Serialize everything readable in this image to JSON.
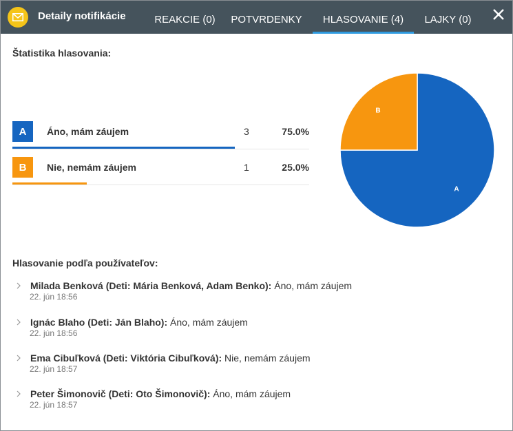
{
  "header": {
    "title": "Detaily notifikácie",
    "icon": "envelope-icon",
    "accent": "#f5c419",
    "bg": "#45535c"
  },
  "tabs": [
    {
      "label": "REAKCIE (0)",
      "active": false
    },
    {
      "label": "POTVRDENKY",
      "active": false
    },
    {
      "label": "HLASOVANIE (4)",
      "active": true
    },
    {
      "label": "LAJKY (0)",
      "active": false
    }
  ],
  "close_icon": "close-icon",
  "stats": {
    "title": "Štatistika hlasovania:",
    "options": [
      {
        "letter": "A",
        "label": "Áno, mám záujem",
        "count": "3",
        "percent": "75.0%",
        "fraction": 0.75,
        "color": "#1565c0"
      },
      {
        "letter": "B",
        "label": "Nie, nemám záujem",
        "count": "1",
        "percent": "25.0%",
        "fraction": 0.25,
        "color": "#f7960f"
      }
    ]
  },
  "chart_data": {
    "type": "pie",
    "categories": [
      "A",
      "B"
    ],
    "values": [
      3,
      1
    ],
    "colors": [
      "#1565c0",
      "#f7960f"
    ]
  },
  "users": {
    "title": "Hlasovanie podľa používateľov:",
    "items": [
      {
        "name": "Milada Benková (Deti: Mária Benková, Adam Benko):",
        "answer": "Áno, mám záujem",
        "time": "22. jún 18:56"
      },
      {
        "name": "Ignác Blaho (Deti: Ján Blaho):",
        "answer": "Áno, mám záujem",
        "time": "22. jún 18:56"
      },
      {
        "name": "Ema Cibuľková (Deti: Viktória Cibuľková):",
        "answer": "Nie, nemám záujem",
        "time": "22. jún 18:57"
      },
      {
        "name": "Peter Šimonovič (Deti: Oto Šimonovič):",
        "answer": "Áno, mám záujem",
        "time": "22. jún 18:57"
      }
    ]
  }
}
